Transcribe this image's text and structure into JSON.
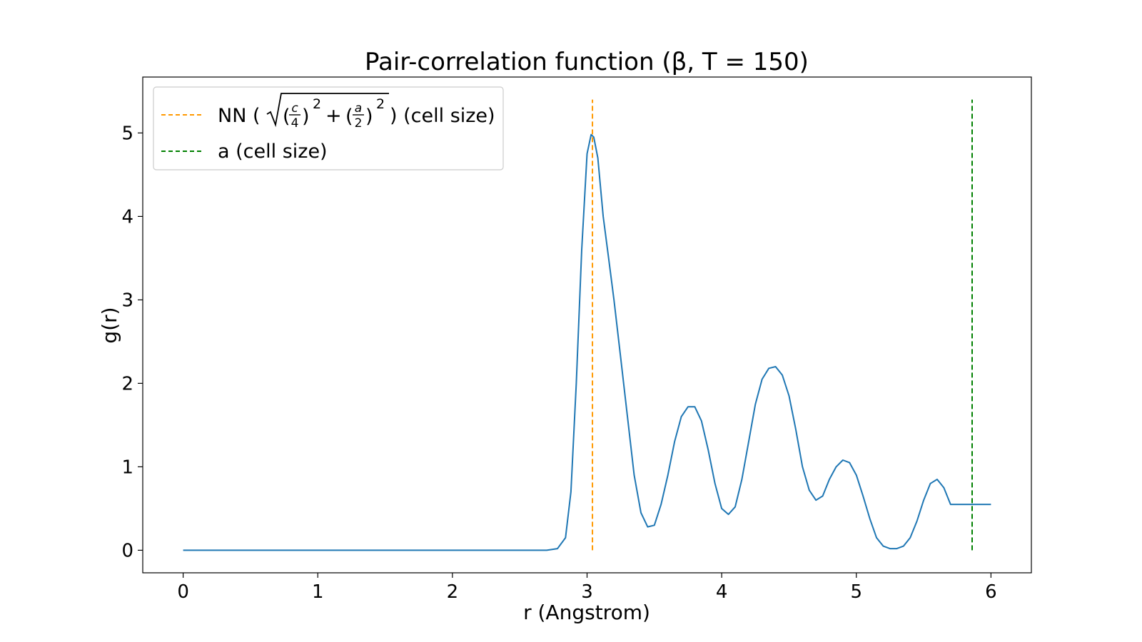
{
  "chart_data": {
    "type": "line",
    "title": "Pair-correlation function (β, T = 150)",
    "xlabel": "r (Angstrom)",
    "ylabel": "g(r)",
    "xlim": [
      -0.3,
      6.3
    ],
    "ylim": [
      -0.27,
      5.67
    ],
    "xticks": [
      0,
      1,
      2,
      3,
      4,
      5,
      6
    ],
    "yticks": [
      0,
      1,
      2,
      3,
      4,
      5
    ],
    "grid": false,
    "legend_position": "top-left",
    "series": [
      {
        "type": "line",
        "color": "#1f77b4",
        "x": [
          0,
          0.5,
          1,
          1.5,
          2,
          2.5,
          2.7,
          2.78,
          2.84,
          2.88,
          2.92,
          2.96,
          3.0,
          3.03,
          3.05,
          3.08,
          3.12,
          3.16,
          3.2,
          3.25,
          3.3,
          3.35,
          3.4,
          3.45,
          3.5,
          3.55,
          3.6,
          3.65,
          3.7,
          3.75,
          3.8,
          3.85,
          3.9,
          3.95,
          4.0,
          4.05,
          4.1,
          4.15,
          4.2,
          4.25,
          4.3,
          4.35,
          4.4,
          4.45,
          4.5,
          4.55,
          4.6,
          4.65,
          4.7,
          4.75,
          4.8,
          4.85,
          4.9,
          4.95,
          5.0,
          5.05,
          5.1,
          5.15,
          5.2,
          5.25,
          5.3,
          5.35,
          5.4,
          5.45,
          5.5,
          5.55,
          5.6,
          5.65,
          5.7,
          5.75,
          5.8,
          5.85,
          5.9,
          5.95,
          6.0
        ],
        "values": [
          0,
          0,
          0,
          0,
          0,
          0,
          0,
          0.02,
          0.15,
          0.7,
          2.0,
          3.6,
          4.75,
          4.98,
          4.95,
          4.7,
          4.0,
          3.5,
          3.0,
          2.3,
          1.6,
          0.9,
          0.45,
          0.28,
          0.3,
          0.55,
          0.9,
          1.3,
          1.6,
          1.72,
          1.72,
          1.55,
          1.2,
          0.8,
          0.5,
          0.43,
          0.52,
          0.85,
          1.3,
          1.75,
          2.05,
          2.18,
          2.2,
          2.1,
          1.85,
          1.45,
          1.0,
          0.72,
          0.6,
          0.65,
          0.85,
          1.0,
          1.08,
          1.05,
          0.9,
          0.65,
          0.38,
          0.15,
          0.05,
          0.02,
          0.02,
          0.05,
          0.15,
          0.35,
          0.6,
          0.8,
          0.85,
          0.75,
          0.55,
          0.55,
          0.55,
          0.55,
          0.55,
          0.55,
          0.55
        ]
      },
      {
        "type": "vline",
        "name": "NN (√((c/4)² + (a/2)²)) (cell size)",
        "color": "#ff9900",
        "x": 3.04,
        "ymin": 0,
        "ymax": 5.4
      },
      {
        "type": "vline",
        "name": "a (cell size)",
        "color": "#008000",
        "x": 5.86,
        "ymin": 0,
        "ymax": 5.4
      }
    ],
    "legend": {
      "nn_prefix": "NN (",
      "nn_c": "c",
      "nn_4": "4",
      "nn_a": "a",
      "nn_2": "2",
      "nn_sq": "2",
      "nn_plus": "+",
      "nn_suffix": ") (cell size)",
      "a_label": "a (cell size)"
    }
  }
}
